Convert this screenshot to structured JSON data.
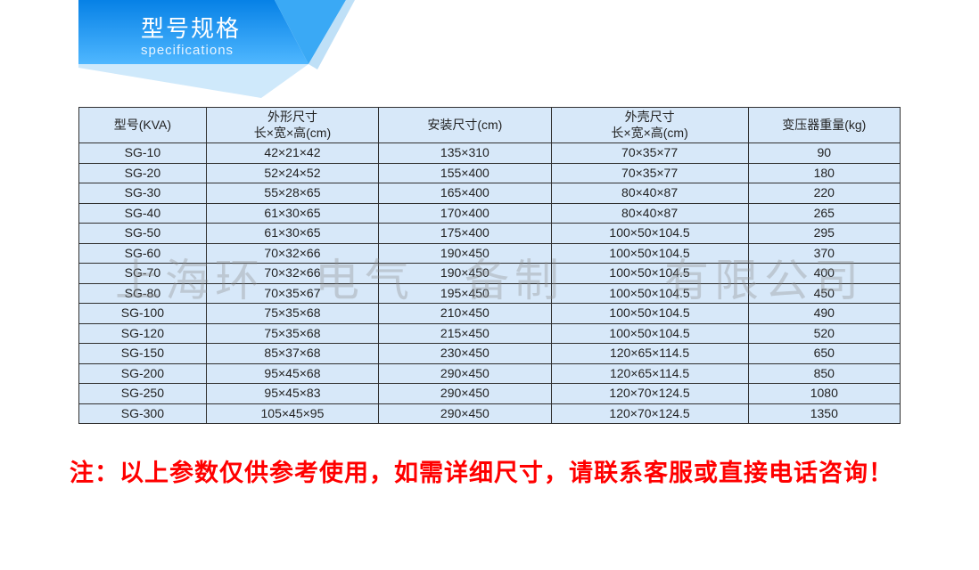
{
  "banner": {
    "title": "型号规格",
    "subtitle": "specifications",
    "bg_gradient_from": "#0681e6",
    "bg_gradient_to": "#4fb7ff",
    "text_color": "#ffffff"
  },
  "table": {
    "header_bg": "#d7e8f9",
    "cell_bg": "#d7e8f9",
    "border_color": "#303030",
    "text_color": "#222222",
    "font_size": 14,
    "columns": [
      {
        "label_top": "型号(KVA)"
      },
      {
        "label_top": "外形尺寸",
        "label_bottom": "长×宽×高(cm)"
      },
      {
        "label_top": "安装尺寸(cm)"
      },
      {
        "label_top": "外壳尺寸",
        "label_bottom": "长×宽×高(cm)"
      },
      {
        "label_top": "变压器重量(kg)"
      }
    ],
    "rows": [
      [
        "SG-10",
        "42×21×42",
        "135×310",
        "70×35×77",
        "90"
      ],
      [
        "SG-20",
        "52×24×52",
        "155×400",
        "70×35×77",
        "180"
      ],
      [
        "SG-30",
        "55×28×65",
        "165×400",
        "80×40×87",
        "220"
      ],
      [
        "SG-40",
        "61×30×65",
        "170×400",
        "80×40×87",
        "265"
      ],
      [
        "SG-50",
        "61×30×65",
        "175×400",
        "100×50×104.5",
        "295"
      ],
      [
        "SG-60",
        "70×32×66",
        "190×450",
        "100×50×104.5",
        "370"
      ],
      [
        "SG-70",
        "70×32×66",
        "190×450",
        "100×50×104.5",
        "400"
      ],
      [
        "SG-80",
        "70×35×67",
        "195×450",
        "100×50×104.5",
        "450"
      ],
      [
        "SG-100",
        "75×35×68",
        "210×450",
        "100×50×104.5",
        "490"
      ],
      [
        "SG-120",
        "75×35×68",
        "215×450",
        "100×50×104.5",
        "520"
      ],
      [
        "SG-150",
        "85×37×68",
        "230×450",
        "120×65×114.5",
        "650"
      ],
      [
        "SG-200",
        "95×45×68",
        "290×450",
        "120×65×114.5",
        "850"
      ],
      [
        "SG-250",
        "95×45×83",
        "290×450",
        "120×70×124.5",
        "1080"
      ],
      [
        "SG-300",
        "105×45×95",
        "290×450",
        "120×70×124.5",
        "1350"
      ]
    ]
  },
  "note": {
    "text": "注：以上参数仅供参考使用，如需详细尺寸，请联系客服或直接电话咨询！",
    "color": "#ff0000",
    "font_size": 27,
    "font_weight": 700
  },
  "watermark": {
    "text": "上海环　电气　备制　　有限公司",
    "color": "rgba(140,140,140,0.35)",
    "font_size": 50
  }
}
